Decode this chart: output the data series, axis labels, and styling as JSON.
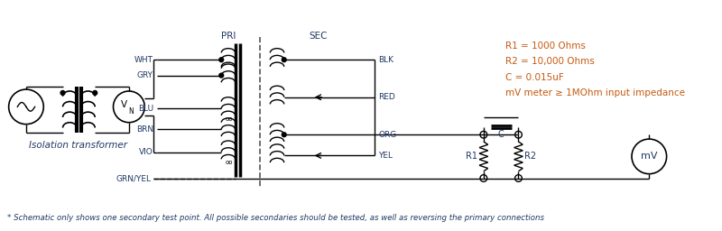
{
  "bg_color": "#ffffff",
  "line_color": "#000000",
  "text_color_blue": "#1f3864",
  "text_color_orange": "#c55a11",
  "fig_width": 8.0,
  "fig_height": 2.56,
  "dpi": 100,
  "footnote": "* Schematic only shows one secondary test point. All possible secondaries should be tested, as well as reversing the primary connections",
  "spec_lines": [
    "R1 = 1000 Ohms",
    "R2 = 10,000 Ohms",
    "C = 0.015uF",
    "mV meter ≥ 1MOhm input impedance"
  ],
  "wire_labels_pri": [
    "WHT",
    "GRY",
    "BLU",
    "BRN",
    "VIO",
    "GRN/YEL"
  ],
  "wire_labels_sec": [
    "BLK",
    "RED",
    "ORG",
    "YEL"
  ],
  "label_pri": "PRI",
  "label_sec": "SEC",
  "label_iso": "Isolation transformer"
}
